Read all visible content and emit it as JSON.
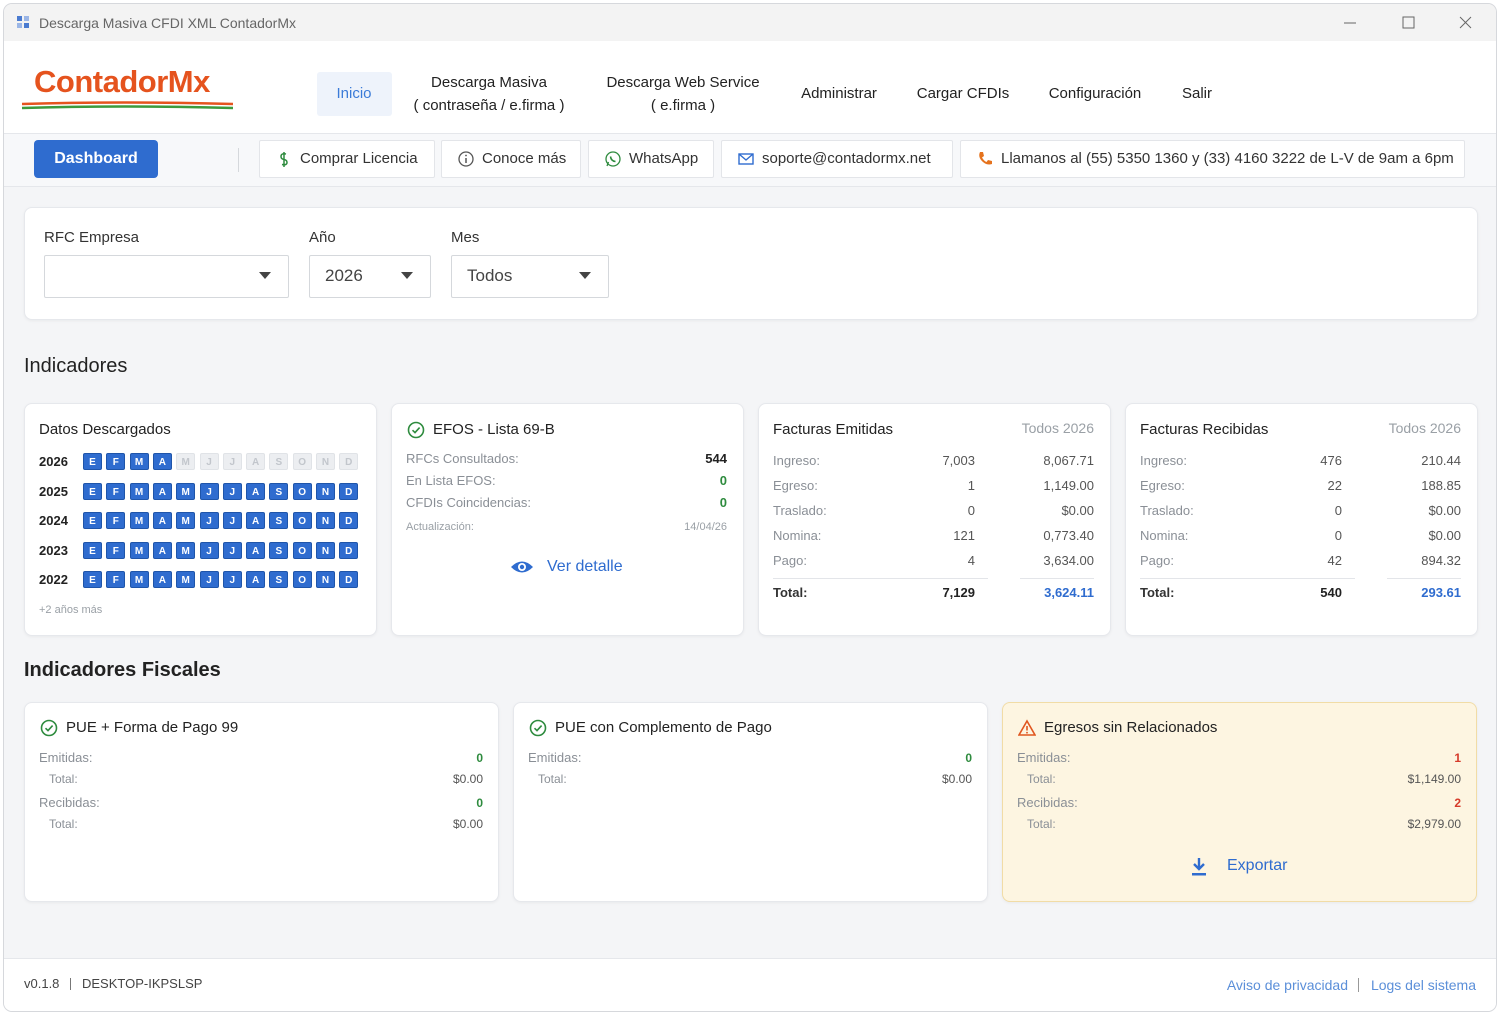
{
  "window": {
    "title": "Descarga Masiva CFDI XML ContadorMx"
  },
  "nav": {
    "logo": "ContadorMx",
    "items": [
      [
        "Inicio"
      ],
      [
        "Descarga Masiva",
        "( contraseña / e.firma )"
      ],
      [
        "Descarga Web Service",
        "( e.firma )"
      ],
      [
        "Administrar"
      ],
      [
        "Cargar CFDIs"
      ],
      [
        "Configuración"
      ],
      [
        "Salir"
      ]
    ]
  },
  "toolbar": {
    "dashboard": "Dashboard",
    "links": [
      "Comprar Licencia",
      "Conoce más",
      "WhatsApp",
      "soporte@contadormx.net",
      "Llamanos al (55) 5350 1360 y (33) 4160 3222 de L-V de 9am a 6pm"
    ]
  },
  "filters": [
    {
      "label": "RFC Empresa"
    },
    {
      "label": "Año",
      "value": "2026"
    },
    {
      "label": "Mes",
      "value": "Todos"
    }
  ],
  "indicadores": {
    "title": "Indicadores"
  },
  "datos": {
    "title": "Datos Descargados",
    "months": [
      "E",
      "F",
      "M",
      "A",
      "M",
      "J",
      "J",
      "A",
      "S",
      "O",
      "N",
      "D"
    ],
    "years": [
      {
        "year": "2026",
        "downloaded": [
          true,
          true,
          true,
          true,
          false,
          false,
          false,
          false,
          false,
          false,
          false,
          false
        ]
      },
      {
        "year": "2025",
        "downloaded": [
          true,
          true,
          true,
          true,
          true,
          true,
          true,
          true,
          true,
          true,
          true,
          true
        ]
      },
      {
        "year": "2024",
        "downloaded": [
          true,
          true,
          true,
          true,
          true,
          true,
          true,
          true,
          true,
          true,
          true,
          true
        ]
      },
      {
        "year": "2023",
        "downloaded": [
          true,
          true,
          true,
          true,
          true,
          true,
          true,
          true,
          true,
          true,
          true,
          true
        ]
      },
      {
        "year": "2022",
        "downloaded": [
          true,
          true,
          true,
          true,
          true,
          true,
          true,
          true,
          true,
          true,
          true,
          true
        ]
      }
    ],
    "more": "+2 años más"
  },
  "efos": {
    "title": "EFOS - Lista 69-B",
    "rows": [
      {
        "label": "RFCs Consultados:",
        "value": "544"
      },
      {
        "label": "En Lista EFOS:",
        "value": "0"
      },
      {
        "label": "CFDIs Coincidencias:",
        "value": "0"
      }
    ],
    "update_label": "Actualización:",
    "update_value": "14/04/26",
    "link": "Ver detalle"
  },
  "emitidas": {
    "title": "Facturas Emitidas",
    "period": "Todos 2026",
    "rows": [
      {
        "label": "Ingreso:",
        "count": "7,003",
        "amount": "8,067.71"
      },
      {
        "label": "Egreso:",
        "count": "1",
        "amount": "1,149.00"
      },
      {
        "label": "Traslado:",
        "count": "0",
        "amount": "$0.00"
      },
      {
        "label": "Nomina:",
        "count": "121",
        "amount": "0,773.40"
      },
      {
        "label": "Pago:",
        "count": "4",
        "amount": "3,634.00"
      }
    ],
    "total": {
      "label": "Total:",
      "count": "7,129",
      "amount": "3,624.11"
    }
  },
  "recibidas": {
    "title": "Facturas Recibidas",
    "period": "Todos 2026",
    "rows": [
      {
        "label": "Ingreso:",
        "count": "476",
        "amount": "210.44"
      },
      {
        "label": "Egreso:",
        "count": "22",
        "amount": "188.85"
      },
      {
        "label": "Traslado:",
        "count": "0",
        "amount": "$0.00"
      },
      {
        "label": "Nomina:",
        "count": "0",
        "amount": "$0.00"
      },
      {
        "label": "Pago:",
        "count": "42",
        "amount": "894.32"
      }
    ],
    "total": {
      "label": "Total:",
      "count": "540",
      "amount": "293.61"
    }
  },
  "fiscales": {
    "title": "Indicadores Fiscales",
    "cards": [
      {
        "title": "PUE + Forma de Pago 99",
        "rows": [
          {
            "label": "Emitidas:",
            "value": "0"
          },
          {
            "label": "Total:",
            "value": "$0.00"
          },
          {
            "label": "Recibidas:",
            "value": "0"
          },
          {
            "label": "Total:",
            "value": "$0.00"
          }
        ]
      },
      {
        "title": "PUE con Complemento de Pago",
        "rows": [
          {
            "label": "Emitidas:",
            "value": "0"
          },
          {
            "label": "Total:",
            "value": "$0.00"
          }
        ]
      },
      {
        "title": "Egresos sin Relacionados",
        "warning": true,
        "rows": [
          {
            "label": "Emitidas:",
            "value": "1"
          },
          {
            "label": "Total:",
            "value": "$1,149.00"
          },
          {
            "label": "Recibidas:",
            "value": "2"
          },
          {
            "label": "Total:",
            "value": "$2,979.00"
          }
        ],
        "action": "Exportar"
      }
    ]
  },
  "footer": {
    "version": "v0.1.8",
    "host": "DESKTOP-IKPSLSP",
    "links": [
      "Aviso de privacidad",
      "Logs del sistema"
    ]
  }
}
